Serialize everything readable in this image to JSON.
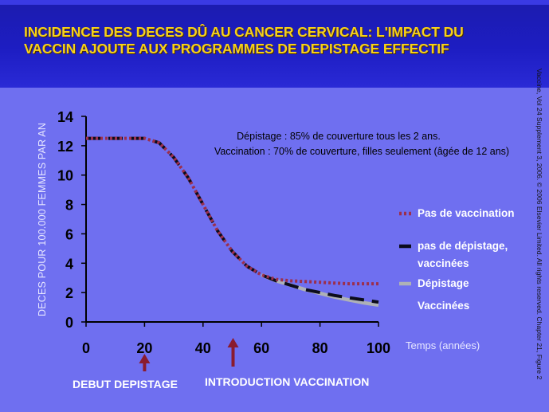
{
  "title": "INCIDENCE DES DECES DÛ AU CANCER CERVICAL: L'IMPACT DU VACCIN AJOUTE AUX PROGRAMMES DE DEPISTAGE EFFECTIF",
  "citation": "Vaccine, Vol 24 Supplement 3, 2006. © 2006 Elsevier Limited. All rights reserved. Chapter 21, Figure 2",
  "colors": {
    "background": "#6f6ff0",
    "header": "#1d1dc2",
    "title": "#f6d11b",
    "pas_de_vaccination": "#9b2f4d",
    "pas_de_depistage_vaccinees": "#0c0c1c",
    "depistage_vaccinees": "#aeb1b6",
    "arrow": "#8a1b2e"
  },
  "chart_data": {
    "type": "line",
    "ylabel": "DECES POUR 100.000 FEMMES PAR AN",
    "xlabel": "Temps (années)",
    "xlim": [
      0,
      100
    ],
    "ylim": [
      0,
      14
    ],
    "x_ticks": [
      0,
      20,
      40,
      60,
      80,
      100
    ],
    "y_ticks": [
      0,
      2,
      4,
      6,
      8,
      10,
      12,
      14
    ],
    "grid": false,
    "legend_position": "right",
    "annotation_lines": [
      "Dépistage : 85% de couverture tous les 2 ans.",
      "Vaccination : 70% de couverture, filles seulement (âgée de 12 ans)"
    ],
    "series": [
      {
        "name": "Pas de vaccination",
        "style": "dotted",
        "x": [
          0,
          10,
          20,
          25,
          30,
          35,
          40,
          45,
          50,
          55,
          60,
          65,
          70,
          75,
          80,
          85,
          90,
          95,
          100
        ],
        "y": [
          12.5,
          12.5,
          12.5,
          12.2,
          11.2,
          9.8,
          8.0,
          6.2,
          4.8,
          3.8,
          3.2,
          2.9,
          2.8,
          2.75,
          2.7,
          2.65,
          2.6,
          2.6,
          2.6
        ]
      },
      {
        "name": "pas de dépistage, vaccinées",
        "style": "dashed",
        "x": [
          0,
          10,
          20,
          25,
          30,
          35,
          40,
          45,
          50,
          55,
          60,
          65,
          70,
          75,
          80,
          85,
          90,
          95,
          100
        ],
        "y": [
          12.5,
          12.5,
          12.5,
          12.2,
          11.2,
          9.8,
          8.0,
          6.2,
          4.8,
          3.8,
          3.2,
          2.8,
          2.5,
          2.2,
          2.0,
          1.8,
          1.65,
          1.5,
          1.35
        ]
      },
      {
        "name": "Dépistage Vaccinées",
        "style": "solid",
        "x": [
          60,
          65,
          70,
          75,
          80,
          85,
          90,
          95,
          100
        ],
        "y": [
          3.2,
          2.8,
          2.5,
          2.2,
          1.95,
          1.7,
          1.5,
          1.3,
          1.15
        ]
      }
    ],
    "milestones": [
      {
        "label": "DEBUT DEPISTAGE",
        "x": 20
      },
      {
        "label": "INTRODUCTION VACCINATION",
        "x": 50
      }
    ]
  }
}
